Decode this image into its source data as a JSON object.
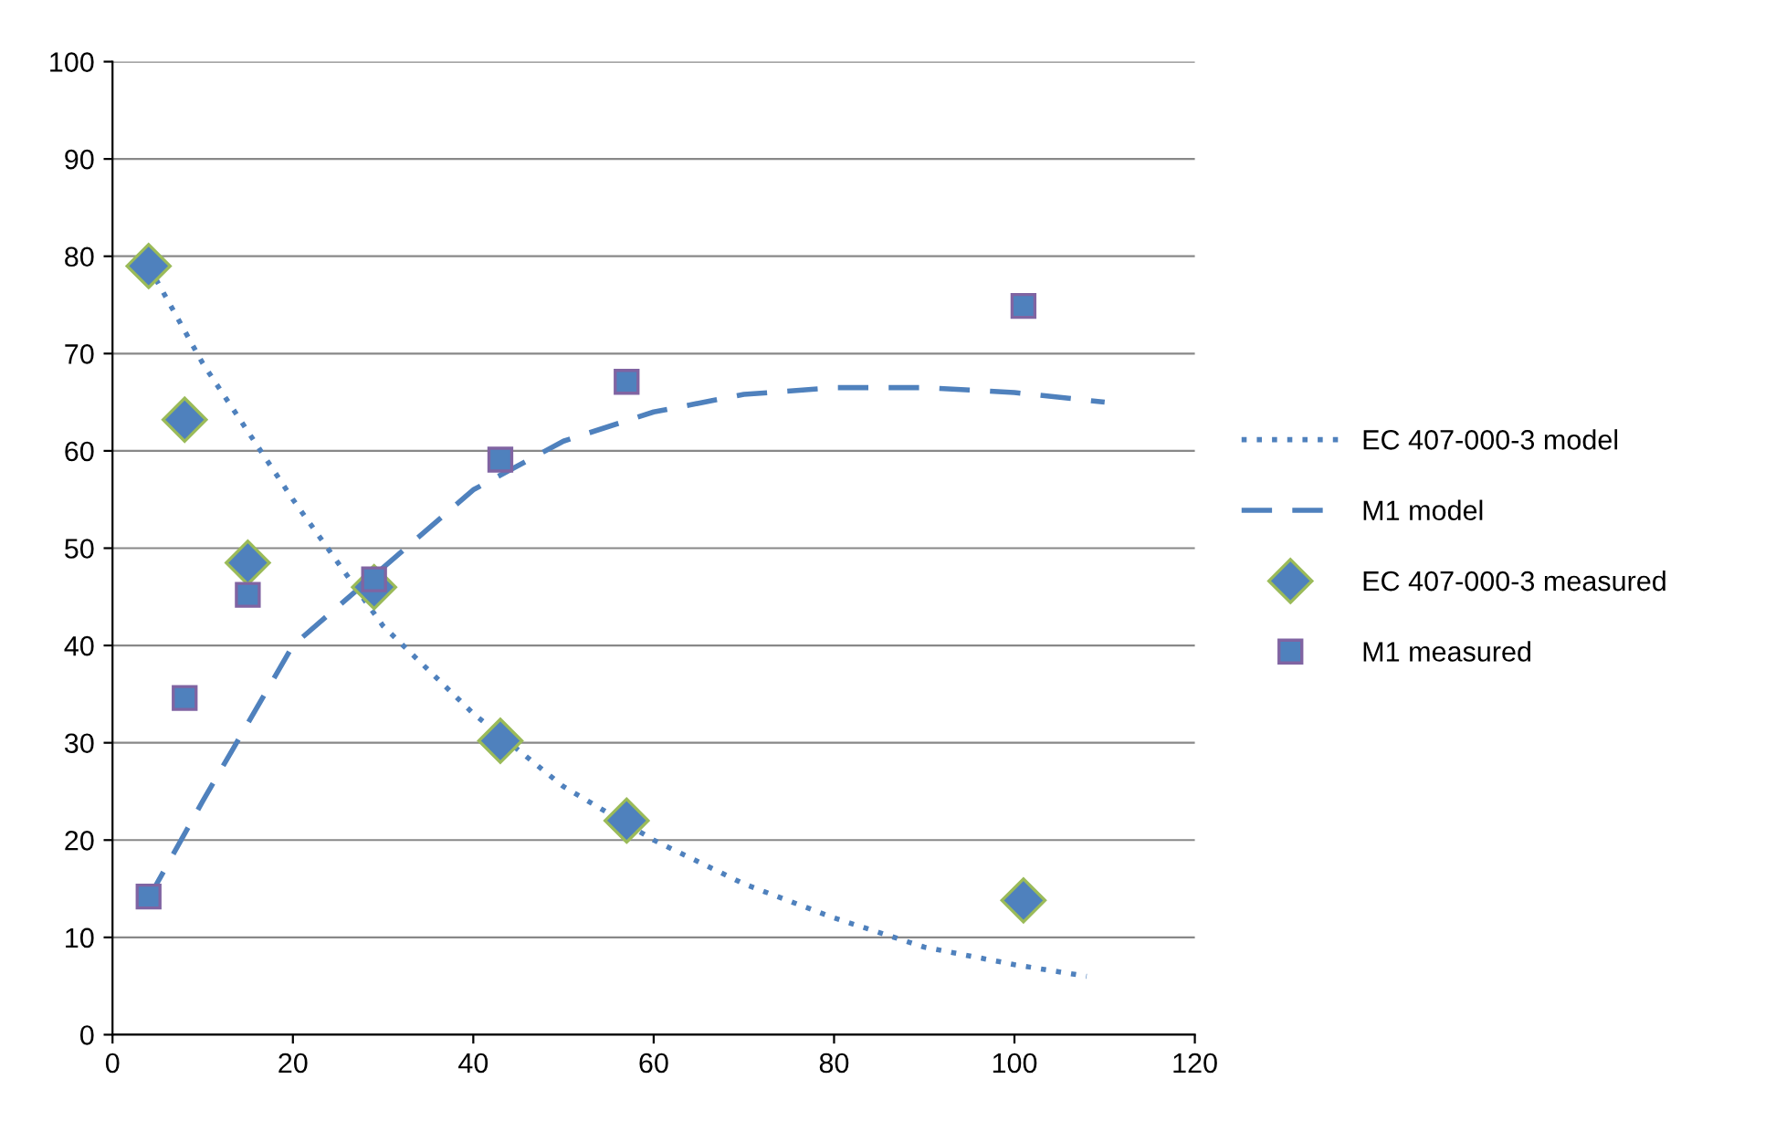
{
  "chart_data": {
    "type": "scatter",
    "xlim": [
      0,
      120
    ],
    "xticks": [
      0,
      20,
      40,
      60,
      80,
      100,
      120
    ],
    "ylim": [
      0,
      100
    ],
    "yticks": [
      0,
      10,
      20,
      30,
      40,
      50,
      60,
      70,
      80,
      90,
      100
    ],
    "grid": "y",
    "legend": "right",
    "series": [
      {
        "name": "EC 407-000-3 model",
        "type": "line",
        "line_style": "dotted",
        "marker": "none",
        "color": "#4f81bd",
        "x": [
          4,
          10,
          20,
          30,
          40,
          50,
          60,
          70,
          80,
          90,
          100,
          108
        ],
        "values": [
          79,
          69,
          55,
          42,
          33,
          25.5,
          20,
          15.5,
          12,
          9,
          7.2,
          6
        ]
      },
      {
        "name": "M1 model",
        "type": "line",
        "line_style": "dashed",
        "marker": "none",
        "color": "#4f81bd",
        "x": [
          4,
          10,
          20,
          30,
          40,
          50,
          60,
          70,
          80,
          90,
          100,
          110
        ],
        "values": [
          14,
          24,
          40,
          48,
          56,
          61,
          64,
          65.8,
          66.5,
          66.5,
          66,
          65
        ]
      },
      {
        "name": "EC 407-000-3 measured",
        "marker": "diamond",
        "color": "#4f81bd",
        "x": [
          4,
          8,
          15,
          29,
          43,
          57,
          101
        ],
        "values": [
          79,
          63.2,
          48.5,
          46,
          30.2,
          22,
          13.8
        ]
      },
      {
        "name": "M1 measured",
        "marker": "square",
        "color": "#4f81bd",
        "x": [
          4,
          8,
          15,
          29,
          43,
          57,
          101
        ],
        "values": [
          14.2,
          34.6,
          45.2,
          46.8,
          59.1,
          67.1,
          74.9
        ]
      }
    ]
  }
}
